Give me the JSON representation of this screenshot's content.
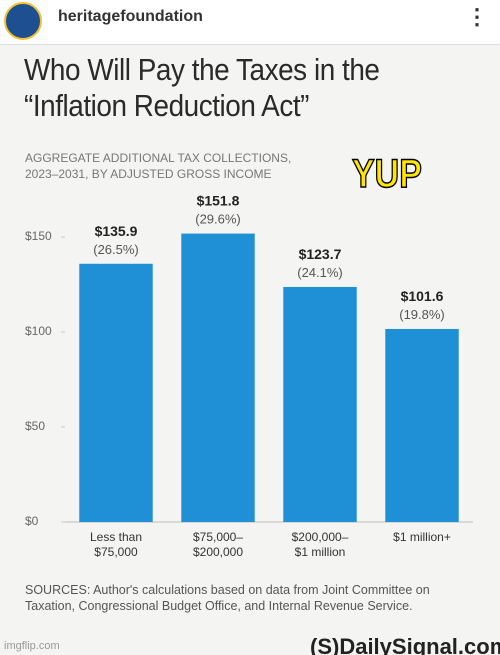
{
  "header": {
    "account": "heritagefoundation"
  },
  "chart_data": {
    "type": "bar",
    "title": "Who Will Pay the Taxes in the\n“Inflation Reduction Act”",
    "subtitle": "AGGREGATE ADDITIONAL TAX COLLECTIONS,\n2023–2031, BY ADJUSTED GROSS INCOME",
    "annotation": "YUP",
    "categories": [
      "Less than\n$75,000",
      "$75,000–\n$200,000",
      "$200,000–\n$1 million",
      "$1 million+"
    ],
    "values": [
      135.9,
      151.8,
      123.7,
      101.6
    ],
    "value_labels": [
      "$135.9",
      "$151.8",
      "$123.7",
      "$101.6"
    ],
    "share_labels": [
      "(26.5%)",
      "(29.6%)",
      "(24.1%)",
      "(19.8%)"
    ],
    "color": "#1f8fd6",
    "ylim": [
      0,
      160
    ],
    "yticks": [
      {
        "value": 0,
        "label": "$0"
      },
      {
        "value": 50,
        "label": "$50"
      },
      {
        "value": 100,
        "label": "$100"
      },
      {
        "value": 150,
        "label": "$150"
      }
    ],
    "sources": "SOURCES: Author's calculations based on data from Joint Committee on Taxation, Congressional Budget Office, and Internal Revenue Service.",
    "publisher": "(S)DailySignal.com"
  },
  "watermark": "imgflip.com"
}
